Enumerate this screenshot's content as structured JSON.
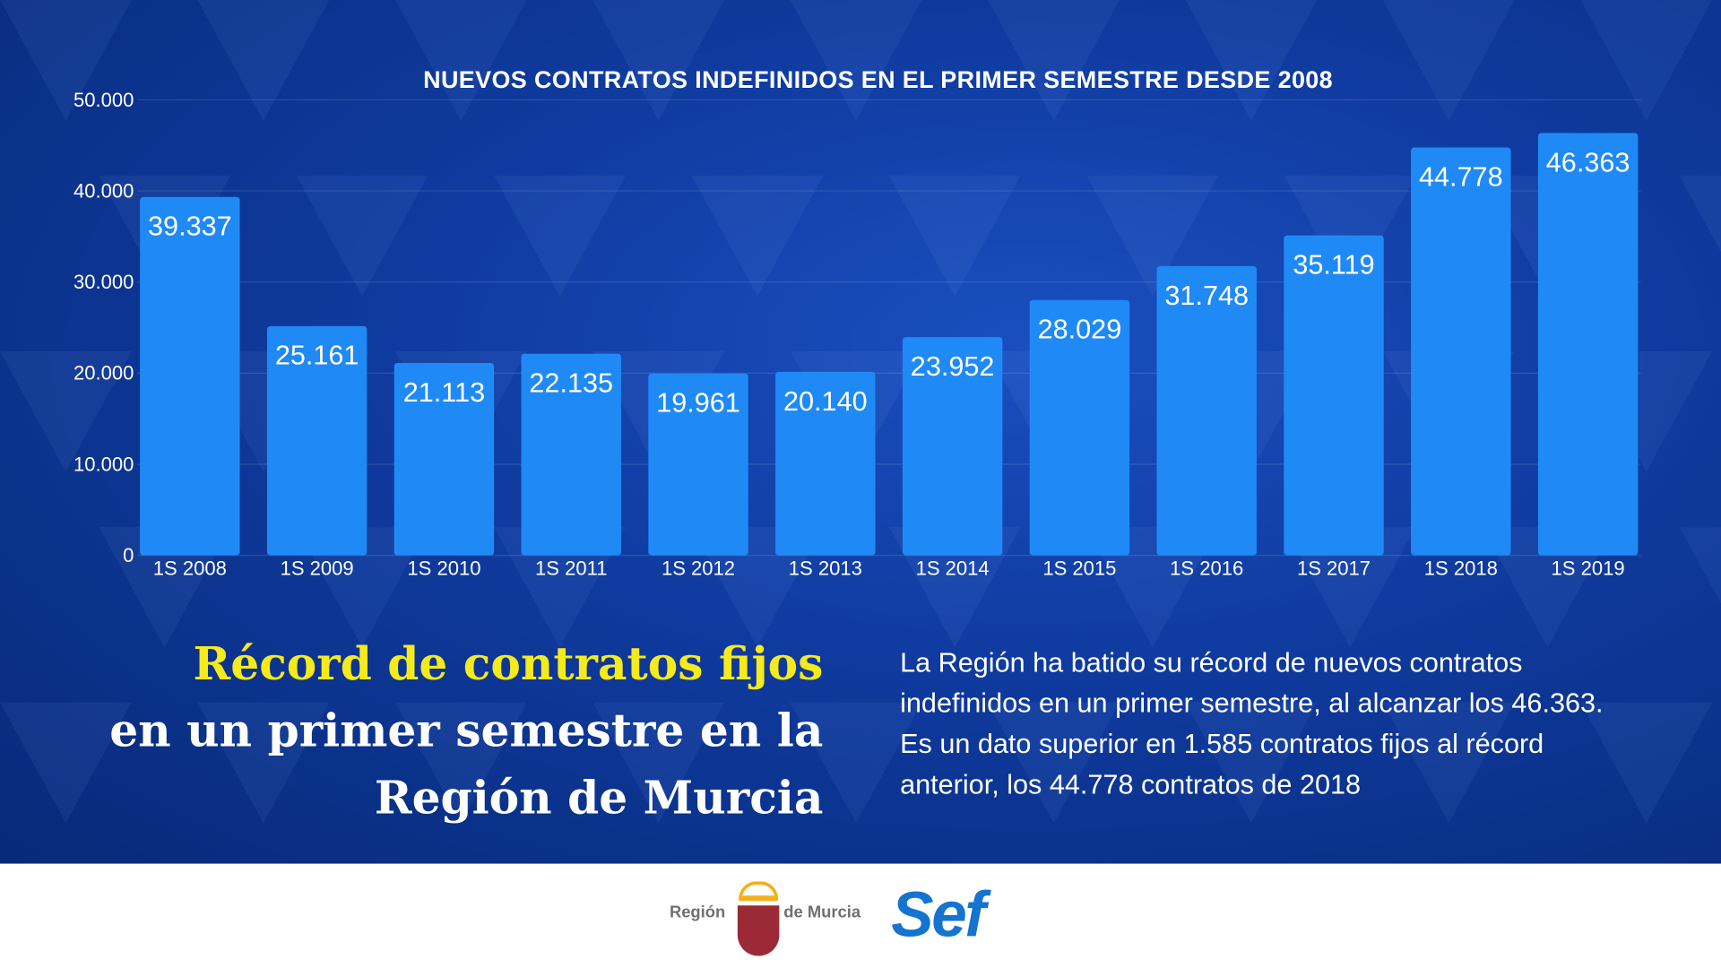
{
  "chart_data": {
    "type": "bar",
    "title": "NUEVOS CONTRATOS INDEFINIDOS EN EL PRIMER SEMESTRE DESDE 2008",
    "categories": [
      "1S 2008",
      "1S 2009",
      "1S 2010",
      "1S 2011",
      "1S 2012",
      "1S 2013",
      "1S 2014",
      "1S 2015",
      "1S 2016",
      "1S 2017",
      "1S 2018",
      "1S 2019"
    ],
    "values": [
      39337,
      25161,
      21113,
      22135,
      19961,
      20140,
      23952,
      28029,
      31748,
      35119,
      44778,
      46363
    ],
    "data_labels": [
      "39.337",
      "25.161",
      "21.113",
      "22.135",
      "19.961",
      "20.140",
      "23.952",
      "28.029",
      "31.748",
      "35.119",
      "44.778",
      "46.363"
    ],
    "yticks": [
      0,
      10000,
      20000,
      30000,
      40000,
      50000
    ],
    "ytick_labels": [
      "0",
      "10.000",
      "20.000",
      "30.000",
      "40.000",
      "50.000"
    ],
    "ylim": [
      0,
      50000
    ],
    "xlabel": "",
    "ylabel": "",
    "bar_color": "#1f8af5"
  },
  "headline": {
    "line1": "Récord de contratos fijos",
    "line2": "en un primer semestre en la",
    "line3": "Región de Murcia"
  },
  "body_text": "La Región ha batido su récord de nuevos contratos indefinidos en un primer semestre, al alcanzar los 46.363. Es un dato superior en 1.585 contratos fijos al récord anterior, los 44.778 contratos de 2018",
  "footer": {
    "region_left": "Región",
    "region_right": "de Murcia",
    "sef": "Sef"
  }
}
